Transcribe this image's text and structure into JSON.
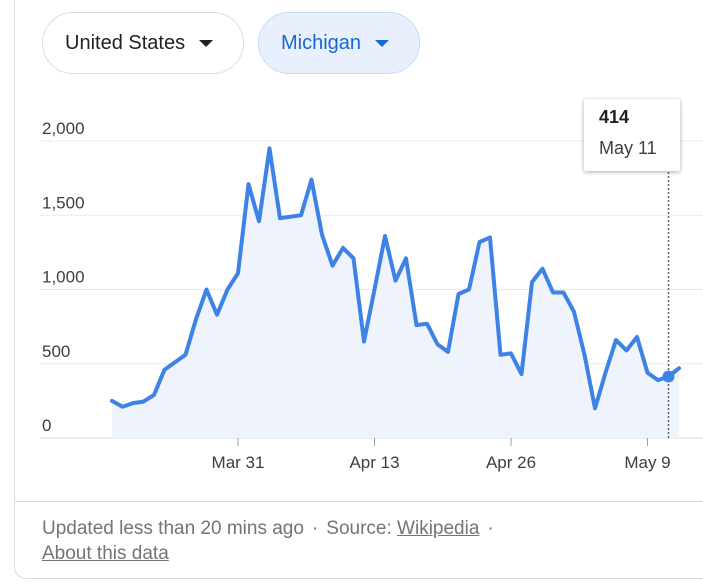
{
  "filters": {
    "country": "United States",
    "region": "Michigan"
  },
  "tooltip": {
    "value": "414",
    "date": "May 11"
  },
  "footer": {
    "updated": "Updated less than 20 mins ago",
    "source_label": "Source:",
    "source_link": "Wikipedia",
    "about_link": "About this data"
  },
  "colors": {
    "line": "#3d82e6",
    "fill": "#eef3fc",
    "grid": "#e8eaed",
    "chip_active_bg": "#e8f0fe",
    "chip_active_text": "#1967d2"
  },
  "chart_data": {
    "type": "area",
    "title": "",
    "xlabel": "",
    "ylabel": "",
    "ylim": [
      0,
      2000
    ],
    "y_ticks": [
      "0",
      "500",
      "1,000",
      "1,500",
      "2,000"
    ],
    "x_ticks": [
      "Mar 31",
      "Apr 13",
      "Apr 26",
      "May 9"
    ],
    "x_start": "Mar 19",
    "x": [
      "Mar 19",
      "Mar 20",
      "Mar 21",
      "Mar 22",
      "Mar 23",
      "Mar 24",
      "Mar 25",
      "Mar 26",
      "Mar 27",
      "Mar 28",
      "Mar 29",
      "Mar 30",
      "Mar 31",
      "Apr 1",
      "Apr 2",
      "Apr 3",
      "Apr 4",
      "Apr 5",
      "Apr 6",
      "Apr 7",
      "Apr 8",
      "Apr 9",
      "Apr 10",
      "Apr 11",
      "Apr 12",
      "Apr 13",
      "Apr 14",
      "Apr 15",
      "Apr 16",
      "Apr 17",
      "Apr 18",
      "Apr 19",
      "Apr 20",
      "Apr 21",
      "Apr 22",
      "Apr 23",
      "Apr 24",
      "Apr 25",
      "Apr 26",
      "Apr 27",
      "Apr 28",
      "Apr 29",
      "Apr 30",
      "May 1",
      "May 2",
      "May 3",
      "May 4",
      "May 5",
      "May 6",
      "May 7",
      "May 8",
      "May 9",
      "May 10",
      "May 11",
      "May 12"
    ],
    "values": [
      250,
      210,
      235,
      245,
      290,
      460,
      510,
      560,
      800,
      1000,
      830,
      1000,
      1110,
      1710,
      1460,
      1950,
      1480,
      1490,
      1500,
      1740,
      1370,
      1160,
      1280,
      1210,
      650,
      1000,
      1360,
      1060,
      1210,
      760,
      770,
      630,
      580,
      970,
      1000,
      1320,
      1350,
      560,
      570,
      430,
      1050,
      1140,
      980,
      980,
      850,
      560,
      200,
      440,
      660,
      590,
      680,
      440,
      390,
      414,
      470
    ],
    "highlight": {
      "date": "May 11",
      "value": 414
    }
  }
}
